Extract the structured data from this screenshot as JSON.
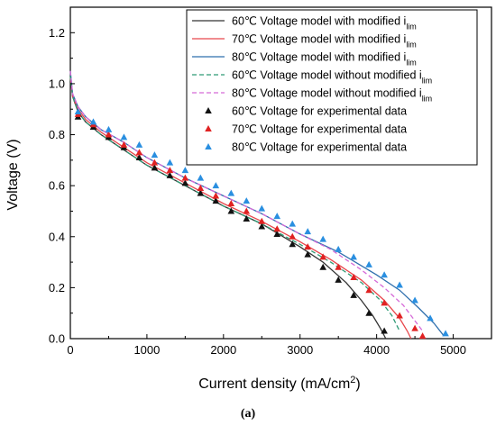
{
  "chart_data": {
    "type": "line",
    "title": "",
    "xlabel": "Current density (mA/cm",
    "xlabel_sup": "2",
    "xlabel_end": ")",
    "ylabel": "Voltage (V)",
    "xlim": [
      0,
      5500
    ],
    "ylim": [
      0,
      1.3
    ],
    "xticks": [
      0,
      1000,
      2000,
      3000,
      4000,
      5000
    ],
    "yticks": [
      0.0,
      0.2,
      0.4,
      0.6,
      0.8,
      1.0,
      1.2
    ],
    "xtick_labels": [
      "0",
      "1000",
      "2000",
      "3000",
      "4000",
      "5000"
    ],
    "ytick_labels": [
      "0.0",
      "0.2",
      "0.4",
      "0.6",
      "0.8",
      "1.0",
      "1.2"
    ],
    "grid": false,
    "legend_position": "top-right",
    "series": [
      {
        "name": "60℃ Voltage model with modified i",
        "sub": "lim",
        "style": "solid",
        "color": "#333333",
        "x": [
          0,
          30,
          100,
          200,
          400,
          700,
          1000,
          1500,
          2000,
          2500,
          3000,
          3300,
          3600,
          3800,
          3950,
          4050,
          4120
        ],
        "y": [
          1.03,
          0.95,
          0.89,
          0.85,
          0.8,
          0.74,
          0.68,
          0.6,
          0.52,
          0.45,
          0.36,
          0.3,
          0.22,
          0.15,
          0.09,
          0.04,
          0.0
        ]
      },
      {
        "name": "70℃ Voltage model with modified i",
        "sub": "lim",
        "style": "solid",
        "color": "#e8474c",
        "x": [
          0,
          30,
          100,
          200,
          400,
          700,
          1000,
          1500,
          2000,
          2500,
          3000,
          3400,
          3800,
          4100,
          4300,
          4400,
          4450
        ],
        "y": [
          1.03,
          0.95,
          0.9,
          0.86,
          0.81,
          0.75,
          0.69,
          0.61,
          0.53,
          0.46,
          0.38,
          0.31,
          0.23,
          0.15,
          0.08,
          0.03,
          0.0
        ]
      },
      {
        "name": "80℃ Voltage model with modified i",
        "sub": "lim",
        "style": "solid",
        "color": "#2f6fad",
        "x": [
          0,
          30,
          100,
          200,
          400,
          700,
          1000,
          1500,
          2000,
          2500,
          3000,
          3500,
          4000,
          4300,
          4550,
          4750,
          4880
        ],
        "y": [
          1.05,
          0.96,
          0.91,
          0.87,
          0.82,
          0.77,
          0.71,
          0.63,
          0.56,
          0.49,
          0.41,
          0.34,
          0.25,
          0.19,
          0.12,
          0.06,
          0.01
        ]
      },
      {
        "name": "60℃ Voltage model without modified i",
        "sub": "lim",
        "style": "dashed",
        "color": "#2e9a75",
        "x": [
          0,
          30,
          100,
          200,
          400,
          700,
          1000,
          1500,
          2000,
          2500,
          3000,
          3400,
          3800,
          4050,
          4200,
          4300
        ],
        "y": [
          1.03,
          0.95,
          0.89,
          0.85,
          0.8,
          0.74,
          0.68,
          0.6,
          0.52,
          0.45,
          0.37,
          0.3,
          0.22,
          0.15,
          0.09,
          0.03
        ]
      },
      {
        "name": "80℃ Voltage model without modified i",
        "sub": "lim",
        "style": "dashed",
        "color": "#d56ad8",
        "x": [
          0,
          30,
          100,
          200,
          400,
          700,
          1000,
          1500,
          2000,
          2500,
          3000,
          3400,
          3800,
          4100,
          4350,
          4500,
          4600
        ],
        "y": [
          1.05,
          0.96,
          0.91,
          0.87,
          0.82,
          0.77,
          0.71,
          0.63,
          0.56,
          0.49,
          0.41,
          0.35,
          0.27,
          0.2,
          0.13,
          0.07,
          0.03
        ]
      },
      {
        "name": "60℃ Voltage for experimental data",
        "style": "triangle",
        "color": "#111111",
        "x": [
          100,
          300,
          500,
          700,
          900,
          1100,
          1300,
          1500,
          1700,
          1900,
          2100,
          2300,
          2500,
          2700,
          2900,
          3100,
          3300,
          3500,
          3700,
          3900,
          4100
        ],
        "y": [
          0.87,
          0.83,
          0.79,
          0.75,
          0.71,
          0.67,
          0.64,
          0.61,
          0.57,
          0.54,
          0.5,
          0.47,
          0.44,
          0.41,
          0.37,
          0.33,
          0.28,
          0.23,
          0.17,
          0.1,
          0.03
        ]
      },
      {
        "name": "70℃ Voltage for experimental data",
        "style": "triangle",
        "color": "#e02222",
        "x": [
          100,
          300,
          500,
          700,
          900,
          1100,
          1300,
          1500,
          1700,
          1900,
          2100,
          2300,
          2500,
          2700,
          2900,
          3100,
          3300,
          3500,
          3700,
          3900,
          4100,
          4300,
          4500,
          4600
        ],
        "y": [
          0.88,
          0.84,
          0.8,
          0.76,
          0.73,
          0.69,
          0.66,
          0.63,
          0.59,
          0.56,
          0.53,
          0.5,
          0.46,
          0.43,
          0.4,
          0.36,
          0.32,
          0.28,
          0.24,
          0.19,
          0.14,
          0.09,
          0.04,
          0.01
        ]
      },
      {
        "name": "80℃ Voltage for experimental data",
        "style": "triangle",
        "color": "#2a8fe0",
        "x": [
          100,
          300,
          500,
          700,
          900,
          1100,
          1300,
          1500,
          1700,
          1900,
          2100,
          2300,
          2500,
          2700,
          2900,
          3100,
          3300,
          3500,
          3700,
          3900,
          4100,
          4300,
          4500,
          4700,
          4900
        ],
        "y": [
          0.89,
          0.85,
          0.82,
          0.79,
          0.76,
          0.72,
          0.69,
          0.66,
          0.63,
          0.6,
          0.57,
          0.54,
          0.51,
          0.48,
          0.45,
          0.42,
          0.39,
          0.35,
          0.32,
          0.29,
          0.25,
          0.21,
          0.15,
          0.08,
          0.02
        ]
      }
    ]
  },
  "caption": "(a)"
}
